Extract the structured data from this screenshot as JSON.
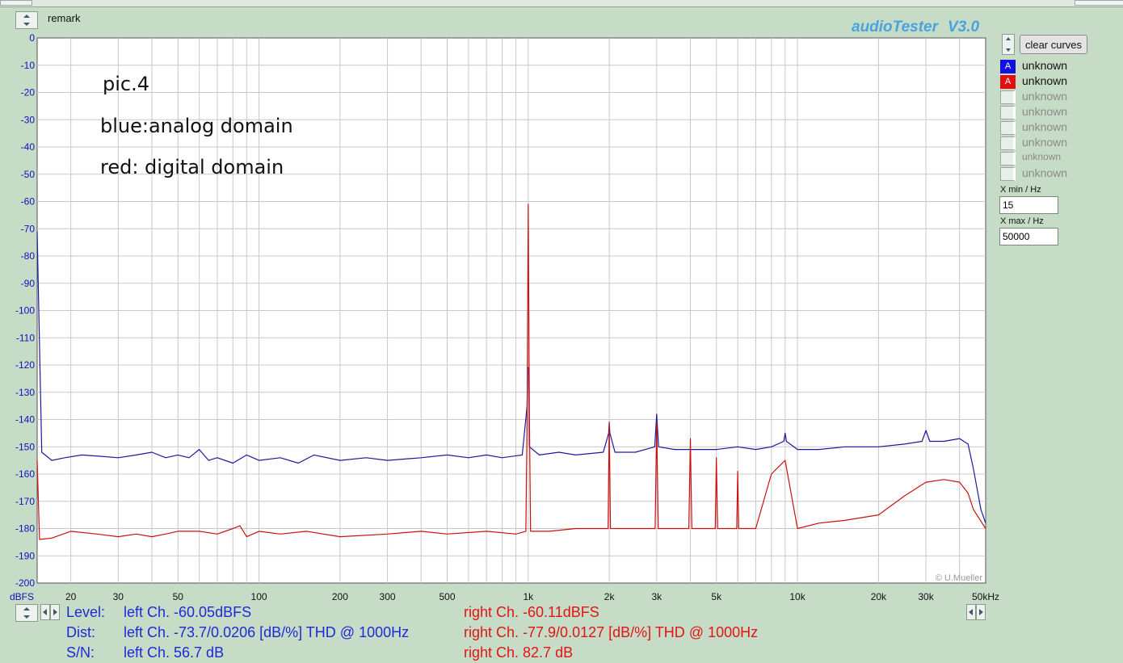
{
  "app": {
    "title": "audioTester",
    "version": "V3.0",
    "remark_label": "remark",
    "clear_label": "clear curves",
    "copyright": "© U.Mueller"
  },
  "annotations": [
    "pic.4",
    "blue:analog domain",
    "red: digital domain"
  ],
  "curves": [
    {
      "badge": "A",
      "label": "unknown",
      "color": "#1010e0",
      "active": true
    },
    {
      "badge": "A",
      "label": "unknown",
      "color": "#e01010",
      "active": true
    },
    {
      "badge": "",
      "label": "unknown",
      "active": false
    },
    {
      "badge": "",
      "label": "unknown",
      "active": false
    },
    {
      "badge": "",
      "label": "unknown",
      "active": false
    },
    {
      "badge": "",
      "label": "unknown",
      "active": false
    },
    {
      "badge": "",
      "label": "unknown",
      "active": false
    },
    {
      "badge": "",
      "label": "unknown",
      "active": false
    }
  ],
  "xmin": {
    "label": "X min / Hz",
    "value": "15"
  },
  "xmax": {
    "label": "X max / Hz",
    "value": "50000"
  },
  "status": {
    "level_label": "Level:",
    "dist_label": "Dist:",
    "sn_label": "S/N:",
    "level_left": "left Ch. -60.05dBFS",
    "level_right": "right Ch. -60.11dBFS",
    "dist_left": "left Ch. -73.7/0.0206 [dB/%] THD @ 1000Hz",
    "dist_right": "right Ch. -77.9/0.0127 [dB/%] THD @ 1000Hz",
    "sn_left": "left Ch. 56.7 dB",
    "sn_right": "right Ch. 82.7 dB"
  },
  "chart_data": {
    "type": "line",
    "xscale": "log",
    "xlim": [
      15,
      50000
    ],
    "ylim": [
      -200,
      0
    ],
    "ylabel": "dBFS",
    "xunit": "kHz",
    "grid": true,
    "y_ticks": [
      0,
      -10,
      -20,
      -30,
      -40,
      -50,
      -60,
      -70,
      -80,
      -90,
      -100,
      -110,
      -120,
      -130,
      -140,
      -150,
      -160,
      -170,
      -180,
      -190,
      -200
    ],
    "x_ticks": [
      {
        "value": 20,
        "label": "20"
      },
      {
        "value": 30,
        "label": "30"
      },
      {
        "value": 50,
        "label": "50"
      },
      {
        "value": 100,
        "label": "100"
      },
      {
        "value": 200,
        "label": "200"
      },
      {
        "value": 300,
        "label": "300"
      },
      {
        "value": 500,
        "label": "500"
      },
      {
        "value": 1000,
        "label": "1k"
      },
      {
        "value": 2000,
        "label": "2k"
      },
      {
        "value": 3000,
        "label": "3k"
      },
      {
        "value": 5000,
        "label": "5k"
      },
      {
        "value": 10000,
        "label": "10k"
      },
      {
        "value": 20000,
        "label": "20k"
      },
      {
        "value": 30000,
        "label": "30k"
      },
      {
        "value": 50000,
        "label": "50kHz"
      }
    ],
    "series": [
      {
        "color": "#1a1aa0",
        "points": [
          [
            15,
            -71
          ],
          [
            15.3,
            -113
          ],
          [
            15.6,
            -152
          ],
          [
            17,
            -155
          ],
          [
            19,
            -154
          ],
          [
            22,
            -153
          ],
          [
            26,
            -153.5
          ],
          [
            30,
            -154
          ],
          [
            35,
            -153
          ],
          [
            40,
            -152
          ],
          [
            45,
            -154
          ],
          [
            50,
            -153
          ],
          [
            55,
            -154
          ],
          [
            60,
            -151
          ],
          [
            65,
            -155
          ],
          [
            70,
            -154
          ],
          [
            80,
            -156
          ],
          [
            90,
            -153
          ],
          [
            100,
            -155
          ],
          [
            120,
            -154
          ],
          [
            140,
            -156
          ],
          [
            160,
            -153
          ],
          [
            200,
            -155
          ],
          [
            250,
            -154
          ],
          [
            300,
            -155
          ],
          [
            400,
            -154
          ],
          [
            500,
            -153
          ],
          [
            600,
            -154
          ],
          [
            700,
            -153
          ],
          [
            800,
            -154
          ],
          [
            950,
            -153
          ],
          [
            990,
            -135
          ],
          [
            995,
            -121
          ],
          [
            1005,
            -121
          ],
          [
            1010,
            -150
          ],
          [
            1100,
            -153
          ],
          [
            1300,
            -152
          ],
          [
            1500,
            -153
          ],
          [
            1900,
            -152
          ],
          [
            1990,
            -145
          ],
          [
            2000,
            -141
          ],
          [
            2010,
            -145
          ],
          [
            2100,
            -152
          ],
          [
            2500,
            -152
          ],
          [
            2950,
            -150
          ],
          [
            3000,
            -138
          ],
          [
            3050,
            -150
          ],
          [
            3500,
            -151
          ],
          [
            4000,
            -151
          ],
          [
            5000,
            -151
          ],
          [
            6000,
            -150
          ],
          [
            7000,
            -151
          ],
          [
            8000,
            -150
          ],
          [
            8900,
            -148
          ],
          [
            9000,
            -145
          ],
          [
            9100,
            -148
          ],
          [
            10000,
            -151
          ],
          [
            12000,
            -151
          ],
          [
            15000,
            -150
          ],
          [
            20000,
            -150
          ],
          [
            25000,
            -149
          ],
          [
            29000,
            -148
          ],
          [
            30000,
            -144
          ],
          [
            31000,
            -148
          ],
          [
            35000,
            -148
          ],
          [
            40000,
            -147
          ],
          [
            43000,
            -149
          ],
          [
            45000,
            -158
          ],
          [
            48000,
            -173
          ],
          [
            50000,
            -178
          ]
        ]
      },
      {
        "color": "#cc1010",
        "points": [
          [
            15,
            -155
          ],
          [
            15.3,
            -184
          ],
          [
            17,
            -183.5
          ],
          [
            20,
            -181
          ],
          [
            25,
            -182
          ],
          [
            30,
            -183
          ],
          [
            35,
            -182
          ],
          [
            40,
            -183
          ],
          [
            45,
            -182
          ],
          [
            50,
            -181
          ],
          [
            60,
            -181
          ],
          [
            70,
            -182
          ],
          [
            80,
            -180
          ],
          [
            85,
            -179
          ],
          [
            90,
            -183
          ],
          [
            100,
            -181
          ],
          [
            120,
            -182
          ],
          [
            150,
            -181
          ],
          [
            200,
            -183
          ],
          [
            300,
            -182
          ],
          [
            400,
            -181
          ],
          [
            500,
            -182
          ],
          [
            700,
            -181
          ],
          [
            900,
            -182
          ],
          [
            980,
            -181
          ],
          [
            990,
            -140
          ],
          [
            1000,
            -61
          ],
          [
            1010,
            -140
          ],
          [
            1020,
            -181
          ],
          [
            1200,
            -181
          ],
          [
            1500,
            -180
          ],
          [
            1980,
            -180
          ],
          [
            2000,
            -141
          ],
          [
            2020,
            -180
          ],
          [
            2960,
            -180
          ],
          [
            3000,
            -141
          ],
          [
            3040,
            -180
          ],
          [
            3950,
            -180
          ],
          [
            4000,
            -147
          ],
          [
            4050,
            -180
          ],
          [
            4950,
            -180
          ],
          [
            5000,
            -154
          ],
          [
            5050,
            -180
          ],
          [
            5950,
            -180
          ],
          [
            6000,
            -159
          ],
          [
            6050,
            -180
          ],
          [
            7000,
            -180
          ],
          [
            8000,
            -160
          ],
          [
            9000,
            -155
          ],
          [
            10000,
            -180
          ],
          [
            12000,
            -178
          ],
          [
            15000,
            -177
          ],
          [
            20000,
            -175
          ],
          [
            25000,
            -168
          ],
          [
            30000,
            -163
          ],
          [
            35000,
            -162
          ],
          [
            40000,
            -163
          ],
          [
            43000,
            -167
          ],
          [
            45000,
            -173
          ],
          [
            50000,
            -180
          ]
        ]
      }
    ]
  }
}
